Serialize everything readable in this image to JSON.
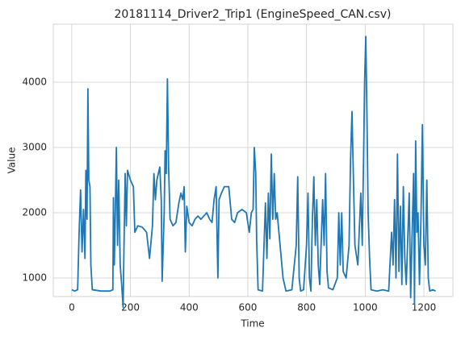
{
  "chart_data": {
    "type": "line",
    "title": "20181114_Driver2_Trip1 (EngineSpeed_CAN.csv)",
    "x_label": "Time",
    "y_label": "Value",
    "x": [
      0,
      10,
      20,
      25,
      30,
      35,
      40,
      45,
      48,
      52,
      55,
      58,
      62,
      65,
      70,
      100,
      130,
      140,
      142,
      145,
      148,
      152,
      156,
      160,
      165,
      170,
      175,
      178,
      182,
      186,
      190,
      200,
      210,
      215,
      225,
      240,
      255,
      265,
      275,
      280,
      285,
      290,
      300,
      305,
      308,
      315,
      318,
      322,
      326,
      330,
      335,
      345,
      355,
      365,
      372,
      378,
      383,
      387,
      392,
      400,
      410,
      420,
      430,
      440,
      450,
      460,
      470,
      478,
      485,
      492,
      498,
      502,
      510,
      520,
      535,
      545,
      555,
      565,
      580,
      595,
      605,
      612,
      618,
      622,
      627,
      630,
      635,
      650,
      660,
      665,
      670,
      675,
      680,
      685,
      690,
      695,
      700,
      710,
      720,
      730,
      750,
      765,
      770,
      775,
      780,
      790,
      800,
      805,
      810,
      815,
      820,
      825,
      830,
      835,
      840,
      845,
      855,
      860,
      865,
      870,
      875,
      890,
      905,
      910,
      915,
      920,
      925,
      935,
      945,
      950,
      955,
      960,
      965,
      975,
      985,
      990,
      995,
      998,
      1002,
      1006,
      1010,
      1015,
      1020,
      1040,
      1060,
      1080,
      1090,
      1095,
      1100,
      1105,
      1110,
      1115,
      1120,
      1125,
      1130,
      1135,
      1140,
      1150,
      1155,
      1160,
      1165,
      1168,
      1172,
      1176,
      1180,
      1185,
      1190,
      1195,
      1200,
      1205,
      1210,
      1215,
      1220,
      1230,
      1240
    ],
    "series": [
      {
        "name": "EngineSpeed",
        "color": "#1f77b4",
        "values": [
          820,
          800,
          820,
          1700,
          2350,
          1400,
          2050,
          1300,
          2650,
          1900,
          3900,
          2500,
          2400,
          1200,
          820,
          800,
          800,
          820,
          2230,
          1200,
          1900,
          3000,
          1500,
          2500,
          1200,
          900,
          550,
          1500,
          2600,
          1800,
          2650,
          2500,
          2400,
          1700,
          1800,
          1780,
          1700,
          1300,
          1800,
          2600,
          2200,
          2500,
          2700,
          2200,
          950,
          2000,
          2950,
          2600,
          4050,
          2700,
          1900,
          1800,
          1850,
          2150,
          2300,
          2200,
          2400,
          1400,
          2100,
          1850,
          1800,
          1900,
          1950,
          1900,
          1950,
          2000,
          1900,
          1850,
          2200,
          2400,
          1000,
          2200,
          2300,
          2400,
          2400,
          1900,
          1850,
          2000,
          2050,
          2000,
          1700,
          2000,
          2050,
          3000,
          2600,
          1600,
          820,
          800,
          2150,
          1300,
          2300,
          1600,
          2900,
          1900,
          2600,
          1900,
          2000,
          1500,
          1000,
          800,
          820,
          1500,
          2550,
          1000,
          800,
          820,
          1500,
          2300,
          1000,
          800,
          1900,
          2550,
          1500,
          2200,
          1200,
          900,
          2200,
          1500,
          2600,
          1100,
          850,
          820,
          1000,
          2000,
          1200,
          2000,
          1100,
          1000,
          1500,
          2800,
          3550,
          2500,
          1500,
          1200,
          2300,
          1500,
          3000,
          4000,
          4700,
          3500,
          2000,
          1300,
          820,
          800,
          820,
          800,
          1700,
          1200,
          2200,
          1000,
          2900,
          1100,
          2100,
          900,
          2400,
          1300,
          900,
          2300,
          700,
          1700,
          2600,
          600,
          3100,
          1700,
          2000,
          900,
          1900,
          3350,
          1500,
          1200,
          2500,
          1000,
          800,
          820,
          800
        ]
      }
    ],
    "xlim": [
      -63,
      1299
    ],
    "ylim": [
      716,
      4889
    ],
    "xticks": [
      0,
      200,
      400,
      600,
      800,
      1000,
      1200
    ],
    "yticks": [
      1000,
      2000,
      3000,
      4000
    ],
    "grid": true
  }
}
